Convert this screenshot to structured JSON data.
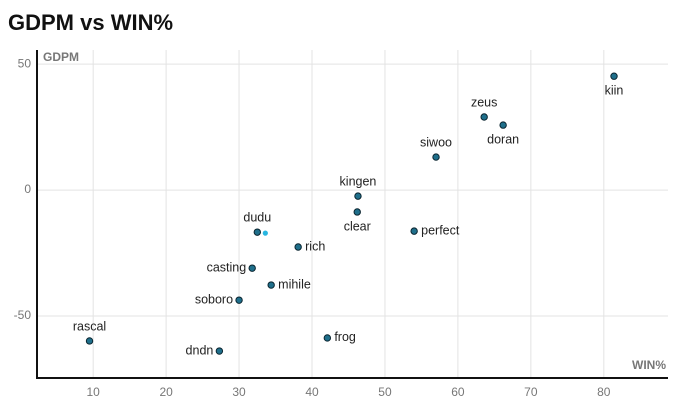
{
  "chart_data": {
    "type": "scatter",
    "title": "GDPM vs WIN%",
    "y_label": "GDPM",
    "x_label": "WIN%",
    "xlim": [
      2.3,
      88.8
    ],
    "ylim": [
      -74.6,
      55.6
    ],
    "xticks": [
      10,
      20,
      30,
      40,
      50,
      60,
      70,
      80
    ],
    "yticks": [
      50,
      0,
      -50
    ],
    "grid": true,
    "series": [
      {
        "color": "#1f6f8b",
        "labels": [
          "kiin",
          "zeus",
          "doran",
          "siwoo",
          "kingen",
          "clear",
          "perfect",
          "dudu",
          "rich",
          "casting",
          "mihile",
          "soboro",
          "rascal",
          "dndn",
          "frog"
        ],
        "x": [
          81.4,
          63.6,
          66.2,
          57.0,
          46.3,
          46.2,
          54.0,
          32.5,
          38.1,
          31.8,
          34.4,
          30.0,
          9.5,
          27.3,
          42.1
        ],
        "values": [
          45.2,
          29.0,
          25.8,
          13.1,
          -2.4,
          -8.7,
          -16.3,
          -16.7,
          -22.6,
          -31.0,
          -37.7,
          -43.7,
          -59.9,
          -63.9,
          -58.7
        ]
      },
      {
        "color": "#29b6e0",
        "x": [
          33.6
        ],
        "values": [
          -17.1
        ]
      }
    ]
  }
}
